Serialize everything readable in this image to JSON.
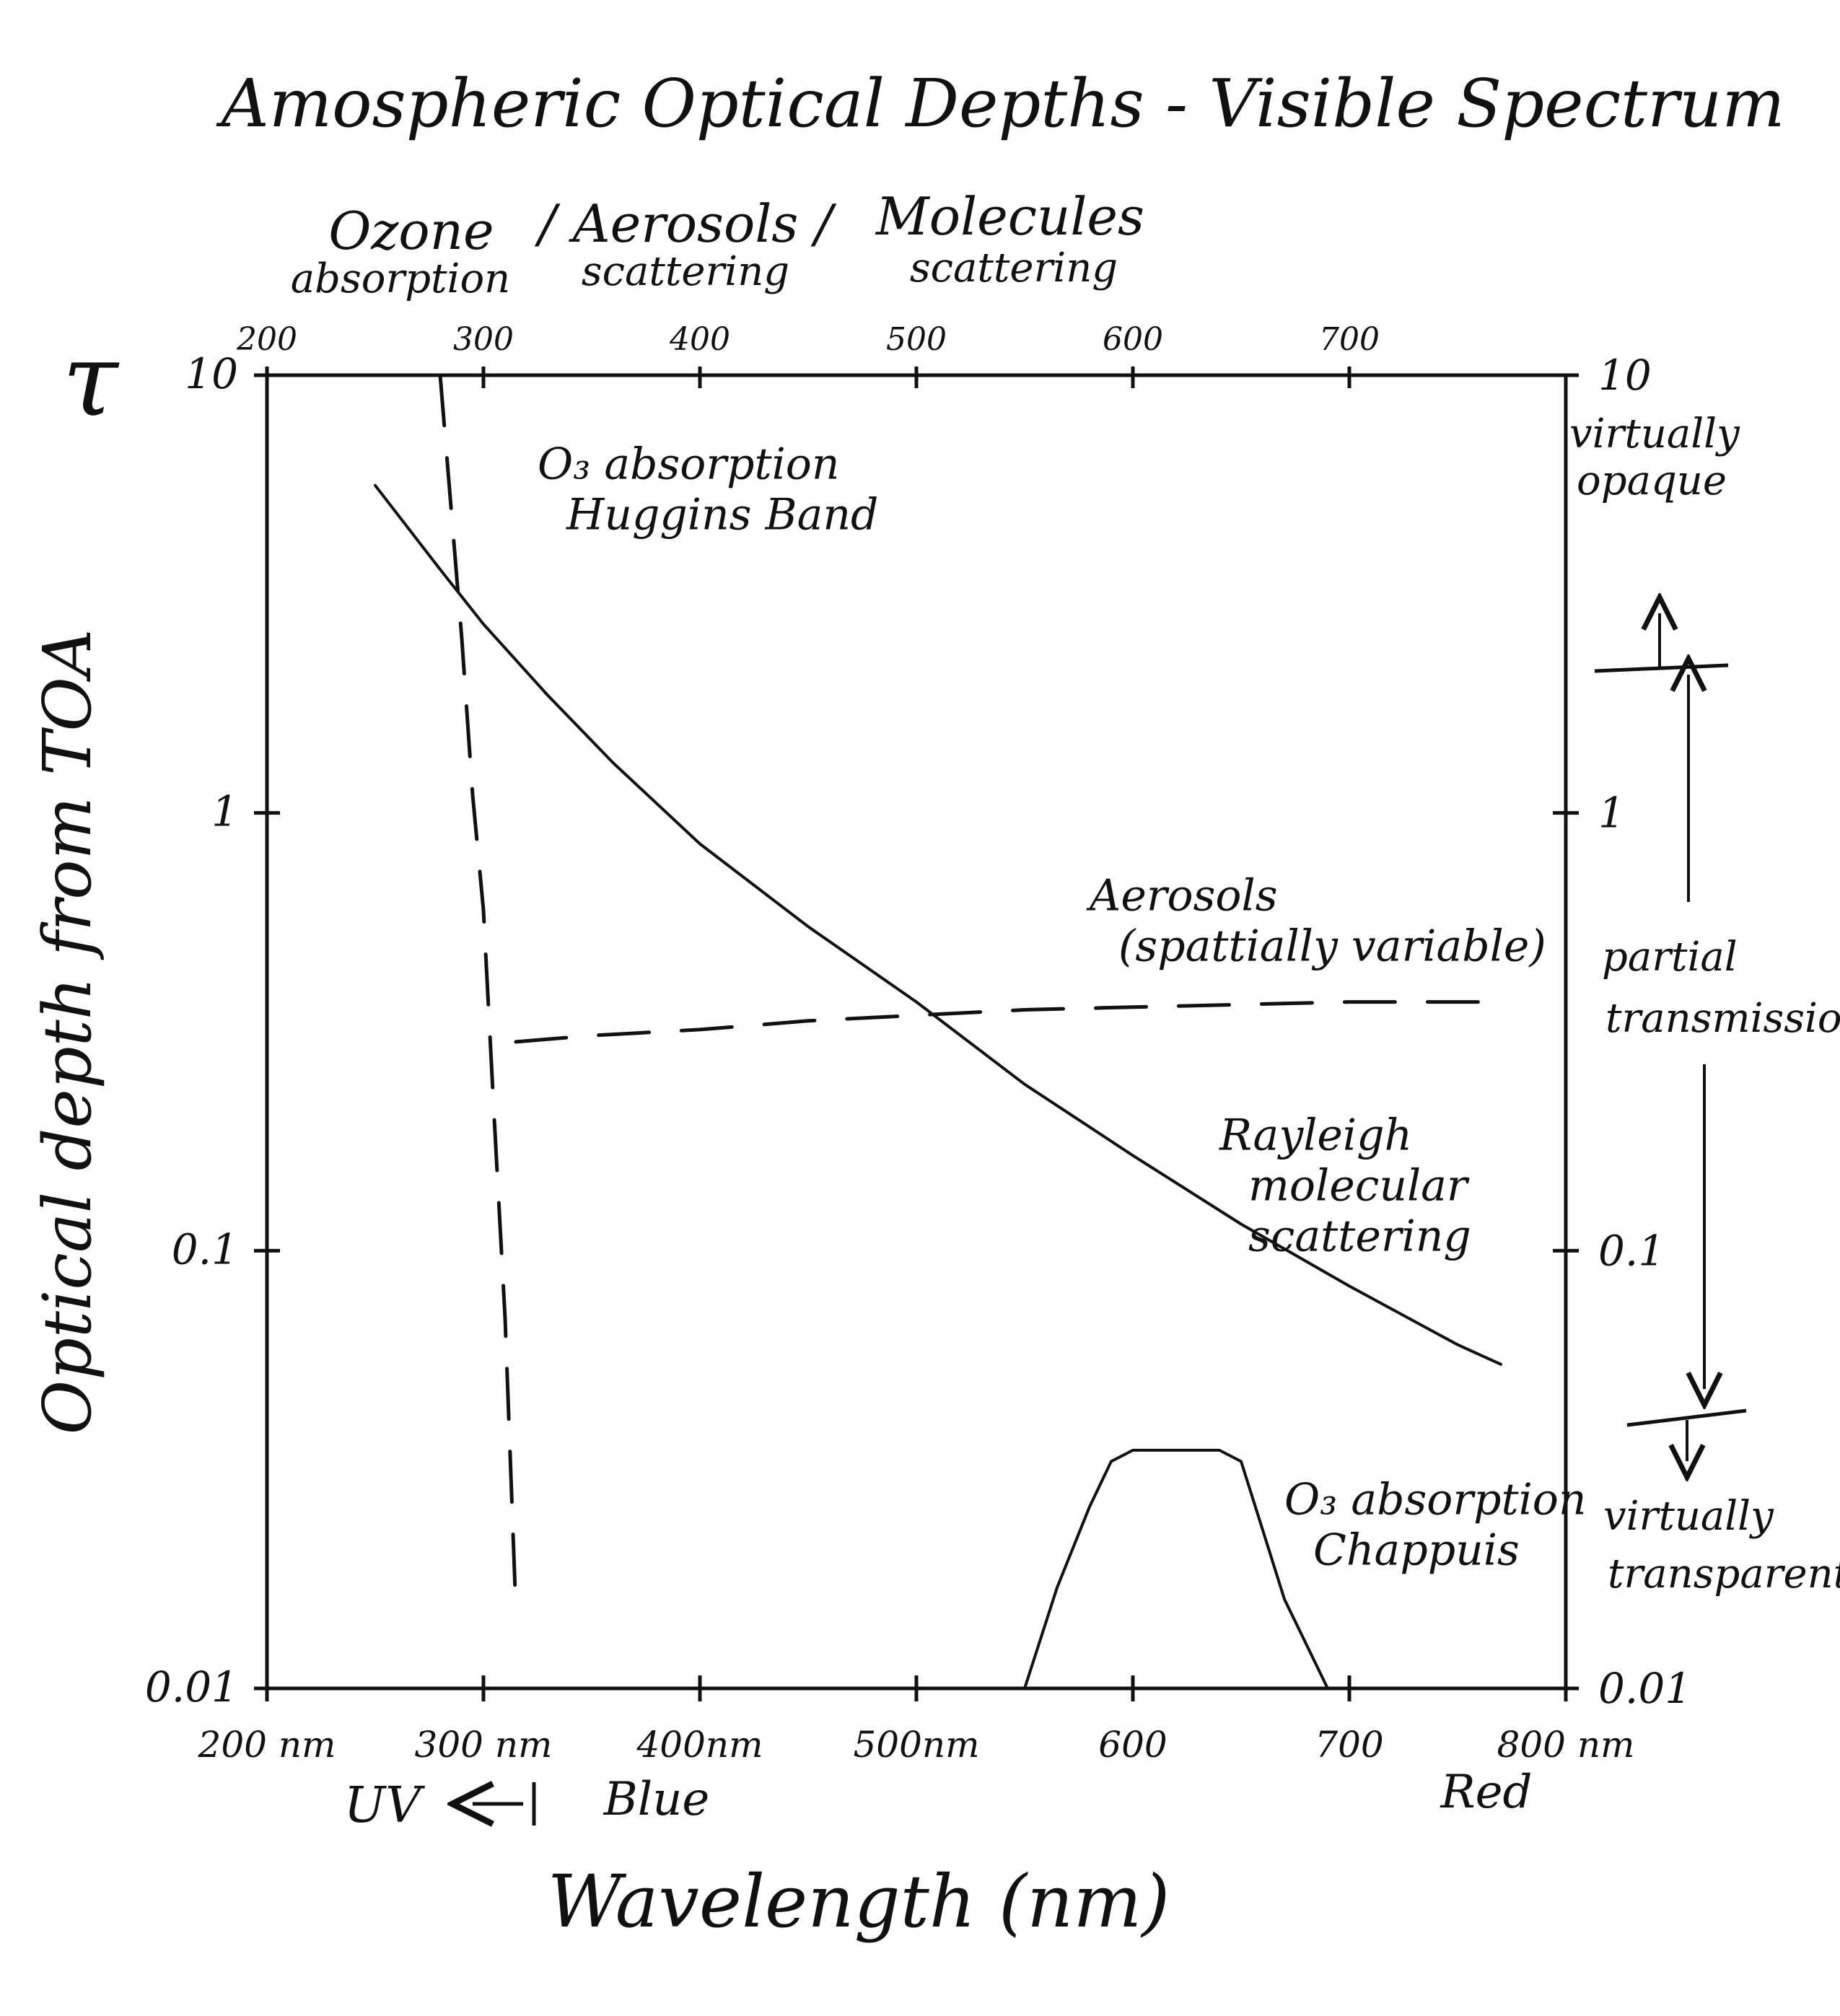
{
  "chart_data": {
    "type": "line",
    "title": "Amospheric Optical Depths - Visible Spectrum",
    "subtitle": {
      "groups": [
        "Ozone",
        "/ Aerosols /",
        "Molecules"
      ],
      "subgroups": [
        "absorption",
        "scattering",
        "scattering"
      ]
    },
    "ylabel": "Optical depth from TOA",
    "ysymbol": "τ",
    "xlabel": "Wavelength (nm)",
    "xlim": [
      200,
      800
    ],
    "ylim": [
      0.01,
      10
    ],
    "yscale": "log",
    "grid": false,
    "x_ticks_bottom": [
      {
        "value": 200,
        "label": "200 nm"
      },
      {
        "value": 300,
        "label": "300 nm"
      },
      {
        "value": 400,
        "label": "400nm"
      },
      {
        "value": 500,
        "label": "500nm"
      },
      {
        "value": 600,
        "label": "600"
      },
      {
        "value": 700,
        "label": "700"
      },
      {
        "value": 800,
        "label": "800 nm"
      }
    ],
    "x_ticks_top": [
      {
        "value": 200,
        "label": "200"
      },
      {
        "value": 300,
        "label": "300"
      },
      {
        "value": 400,
        "label": "400"
      },
      {
        "value": 500,
        "label": "500"
      },
      {
        "value": 600,
        "label": "600"
      },
      {
        "value": 700,
        "label": "700"
      }
    ],
    "y_ticks_left": [
      {
        "value": 10,
        "label": "10"
      },
      {
        "value": 1,
        "label": "1"
      },
      {
        "value": 0.1,
        "label": "0.1"
      },
      {
        "value": 0.01,
        "label": "0.01"
      }
    ],
    "y_ticks_right": [
      {
        "value": 10,
        "label": "10"
      },
      {
        "value": 1,
        "label": "1"
      },
      {
        "value": 0.1,
        "label": "0.1"
      },
      {
        "value": 0.01,
        "label": "0.01"
      }
    ],
    "series": [
      {
        "style": "solid",
        "x": [
          250,
          280,
          300,
          330,
          360,
          400,
          450,
          500,
          550,
          600,
          650,
          700,
          750,
          770
        ],
        "y": [
          5.6,
          3.6,
          2.7,
          1.85,
          1.3,
          0.85,
          0.55,
          0.37,
          0.24,
          0.165,
          0.115,
          0.083,
          0.061,
          0.055
        ]
      },
      {
        "style": "dashed",
        "x": [
          280,
          285,
          290,
          295,
          300,
          305,
          310,
          315
        ],
        "y": [
          10,
          5,
          2.5,
          1.1,
          0.6,
          0.2,
          0.07,
          0.015
        ]
      },
      {
        "style": "dashed",
        "x": [
          315,
          350,
          400,
          450,
          500,
          550,
          600,
          650,
          700,
          750,
          770
        ],
        "y": [
          0.3,
          0.31,
          0.32,
          0.335,
          0.345,
          0.355,
          0.36,
          0.365,
          0.37,
          0.37,
          0.37
        ]
      },
      {
        "style": "solid",
        "x": [
          550,
          565,
          580,
          590,
          600,
          620,
          640,
          650,
          660,
          670,
          690
        ],
        "y": [
          0.01,
          0.017,
          0.026,
          0.033,
          0.035,
          0.035,
          0.035,
          0.033,
          0.023,
          0.016,
          0.01
        ]
      }
    ],
    "annotations": [
      {
        "lines": [
          "O₃ absorption",
          "Huggins Band"
        ],
        "x": 325,
        "y": 5.8
      },
      {
        "lines": [
          "Aerosols",
          "(spattially variable)"
        ],
        "x": 580,
        "y": 0.6
      },
      {
        "lines": [
          "Rayleigh",
          "molecular",
          "scattering"
        ],
        "x": 640,
        "y": 0.17
      },
      {
        "lines": [
          "O₃ absorption",
          "Chappuis"
        ],
        "x": 670,
        "y": 0.025
      }
    ],
    "right_notes": [
      {
        "lines": [
          "virtually",
          "opaque"
        ]
      },
      {
        "lines": [
          "partial",
          "transmission"
        ]
      },
      {
        "lines": [
          "virtually",
          "transparent"
        ]
      }
    ],
    "band_labels": [
      "UV",
      "Blue",
      "Red"
    ]
  }
}
